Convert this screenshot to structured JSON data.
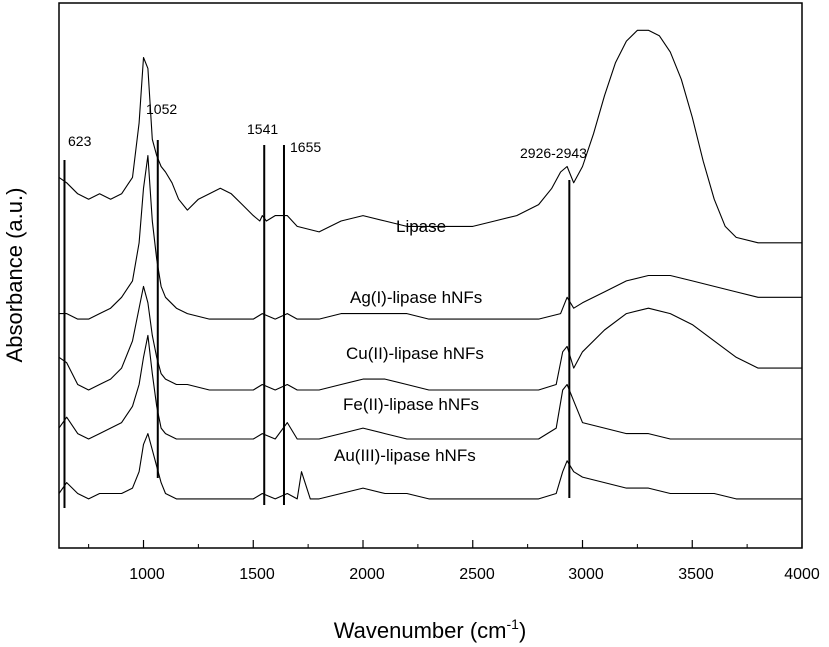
{
  "chart_data": {
    "type": "line",
    "title": "",
    "xlabel": "Wavenumber (cm",
    "xlabel_sup": "-1",
    "xlabel_close": ")",
    "ylabel": "Absorbance (a.u.)",
    "xlim": [
      615,
      4000
    ],
    "ylim": [
      0,
      100
    ],
    "y_ticks_labeled": false,
    "grid": false,
    "x_ticks": [
      "1000",
      "1500",
      "2000",
      "2500",
      "3000",
      "3500",
      "4000"
    ],
    "annotations": [
      {
        "text": "623",
        "x": 640
      },
      {
        "text": "1052",
        "x": 1065
      },
      {
        "text": "1541",
        "x": 1550
      },
      {
        "text": "1655",
        "x": 1640
      },
      {
        "text": "2926-2943",
        "x": 2940
      }
    ],
    "series": [
      {
        "name": "Lipase",
        "x": [
          615,
          650,
          700,
          750,
          800,
          850,
          900,
          950,
          980,
          1000,
          1020,
          1040,
          1060,
          1080,
          1100,
          1130,
          1160,
          1200,
          1250,
          1300,
          1350,
          1400,
          1450,
          1500,
          1530,
          1541,
          1560,
          1600,
          1655,
          1700,
          1800,
          1900,
          2000,
          2100,
          2200,
          2300,
          2400,
          2500,
          2600,
          2700,
          2800,
          2860,
          2900,
          2930,
          2960,
          3000,
          3050,
          3100,
          3150,
          3200,
          3250,
          3300,
          3350,
          3400,
          3450,
          3500,
          3550,
          3600,
          3650,
          3700,
          3800,
          3900,
          4000
        ],
        "y": [
          68,
          67,
          65,
          64,
          65,
          64,
          65,
          68,
          78,
          90,
          88,
          75,
          72,
          70,
          69,
          67,
          64,
          62,
          64,
          65,
          66,
          65,
          63,
          61,
          60,
          61,
          60,
          61,
          61,
          59,
          58,
          60,
          61,
          60,
          59,
          59,
          59,
          59,
          60,
          61,
          63,
          66,
          69,
          70,
          67,
          70,
          76,
          83,
          89,
          93,
          95,
          95,
          94,
          91,
          86,
          79,
          71,
          64,
          59,
          57,
          56,
          56,
          56
        ]
      },
      {
        "name": "Ag(I)-lipase hNFs",
        "x": [
          615,
          650,
          700,
          750,
          800,
          850,
          900,
          950,
          980,
          1000,
          1020,
          1040,
          1060,
          1080,
          1100,
          1150,
          1200,
          1300,
          1400,
          1500,
          1541,
          1600,
          1655,
          1700,
          1800,
          1900,
          2000,
          2100,
          2200,
          2300,
          2400,
          2500,
          2600,
          2700,
          2800,
          2900,
          2930,
          2960,
          3000,
          3100,
          3200,
          3300,
          3400,
          3500,
          3600,
          3700,
          3800,
          3900,
          4000
        ],
        "y": [
          43,
          43,
          42,
          42,
          43,
          44,
          46,
          49,
          56,
          66,
          72,
          60,
          53,
          48,
          46,
          44,
          43,
          42,
          42,
          42,
          43,
          42,
          43,
          42,
          42,
          43,
          43,
          43,
          43,
          42,
          42,
          42,
          42,
          42,
          42,
          43,
          46,
          44,
          45,
          47,
          49,
          50,
          50,
          49,
          48,
          47,
          46,
          46,
          46
        ]
      },
      {
        "name": "Cu(II)-lipase hNFs",
        "x": [
          615,
          650,
          700,
          750,
          800,
          850,
          900,
          950,
          980,
          1000,
          1020,
          1040,
          1060,
          1080,
          1100,
          1150,
          1200,
          1300,
          1400,
          1500,
          1541,
          1600,
          1655,
          1700,
          1800,
          1900,
          2000,
          2100,
          2200,
          2300,
          2400,
          2500,
          2600,
          2700,
          2800,
          2880,
          2910,
          2930,
          2960,
          3000,
          3100,
          3200,
          3300,
          3400,
          3500,
          3600,
          3700,
          3800,
          3900,
          4000
        ],
        "y": [
          35,
          34,
          30,
          29,
          30,
          31,
          33,
          38,
          44,
          48,
          45,
          39,
          35,
          32,
          31,
          30,
          30,
          29,
          29,
          29,
          30,
          29,
          30,
          29,
          29,
          30,
          31,
          31,
          30,
          29,
          29,
          29,
          29,
          29,
          29,
          30,
          36,
          37,
          33,
          36,
          40,
          43,
          44,
          43,
          41,
          38,
          35,
          33,
          33,
          33
        ]
      },
      {
        "name": "Fe(II)-lipase hNFs",
        "x": [
          615,
          650,
          700,
          750,
          800,
          850,
          900,
          950,
          980,
          1000,
          1020,
          1040,
          1060,
          1080,
          1100,
          1150,
          1200,
          1300,
          1400,
          1500,
          1541,
          1600,
          1655,
          1700,
          1800,
          1900,
          2000,
          2100,
          2200,
          2300,
          2400,
          2500,
          2600,
          2700,
          2800,
          2880,
          2910,
          2930,
          2960,
          3000,
          3100,
          3200,
          3300,
          3400,
          3500,
          3600,
          3700,
          3800,
          3900,
          4000
        ],
        "y": [
          22,
          24,
          21,
          20,
          21,
          22,
          23,
          26,
          30,
          35,
          39,
          32,
          26,
          22,
          21,
          20,
          20,
          20,
          20,
          20,
          21,
          20,
          23,
          20,
          20,
          21,
          22,
          21,
          20,
          20,
          20,
          20,
          20,
          20,
          20,
          22,
          29,
          30,
          27,
          23,
          22,
          21,
          21,
          20,
          20,
          20,
          20,
          20,
          20,
          20
        ]
      },
      {
        "name": "Au(III)-lipase hNFs",
        "x": [
          615,
          650,
          700,
          750,
          800,
          850,
          900,
          950,
          980,
          1000,
          1020,
          1040,
          1060,
          1080,
          1100,
          1150,
          1200,
          1300,
          1400,
          1500,
          1541,
          1600,
          1655,
          1700,
          1720,
          1760,
          1800,
          1900,
          2000,
          2100,
          2200,
          2300,
          2400,
          2500,
          2600,
          2700,
          2800,
          2880,
          2910,
          2930,
          2960,
          3000,
          3100,
          3200,
          3300,
          3400,
          3500,
          3600,
          3700,
          3800,
          3900,
          4000
        ],
        "y": [
          10,
          12,
          10,
          9,
          10,
          10,
          10,
          11,
          14,
          19,
          21,
          18,
          15,
          12,
          10,
          9,
          9,
          9,
          9,
          9,
          10,
          9,
          10,
          9,
          14,
          9,
          9,
          10,
          11,
          10,
          10,
          9,
          9,
          9,
          9,
          9,
          9,
          10,
          14,
          16,
          14,
          13,
          12,
          11,
          11,
          10,
          10,
          10,
          9,
          9,
          9,
          9
        ]
      }
    ]
  }
}
